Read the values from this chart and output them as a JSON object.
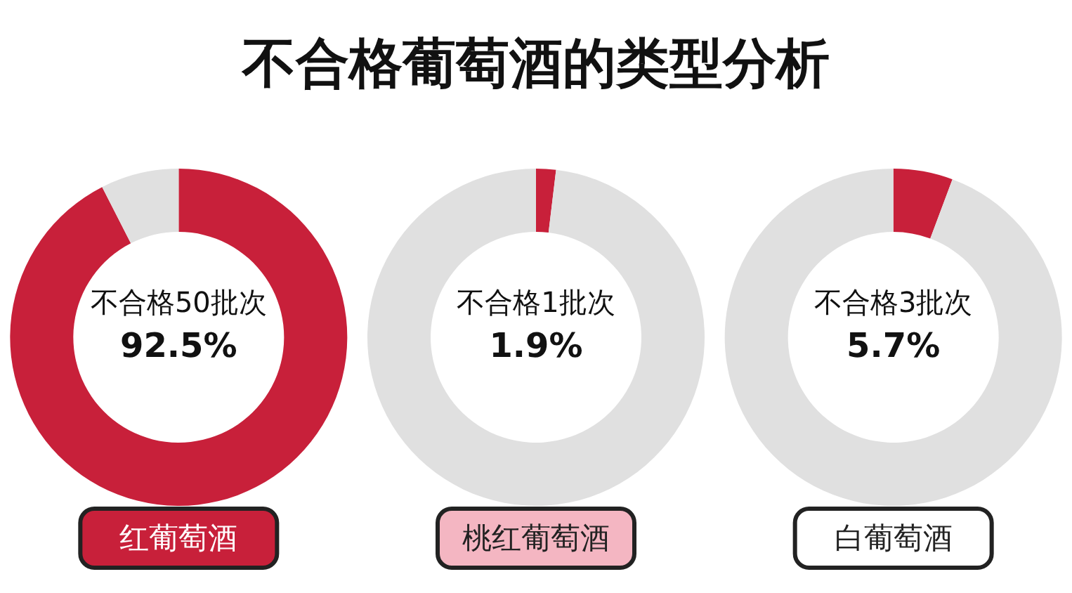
{
  "chart_data": [
    {
      "type": "donut",
      "title": "不合格葡萄酒的类型分析",
      "xlabel": "红葡萄酒",
      "annotations": [
        "不合格50批次",
        "92.5%"
      ],
      "categories": [
        null,
        null
      ],
      "values": [
        92.5,
        7.5
      ],
      "colors": [
        "#c8203a",
        "#e0e0e0"
      ]
    },
    {
      "type": "donut",
      "xlabel": "桃红葡萄酒",
      "annotations": [
        "不合格1批次",
        "1.9%"
      ],
      "categories": [
        null,
        null
      ],
      "values": [
        1.9,
        98.1
      ],
      "colors": [
        "#c8203a",
        "#e0e0e0"
      ]
    },
    {
      "type": "donut",
      "xlabel": "白葡萄酒",
      "annotations": [
        "不合格3批次",
        "5.7%"
      ],
      "categories": [
        null,
        null
      ],
      "values": [
        5.7,
        94.3
      ],
      "colors": [
        "#c8203a",
        "#e0e0e0"
      ]
    }
  ]
}
